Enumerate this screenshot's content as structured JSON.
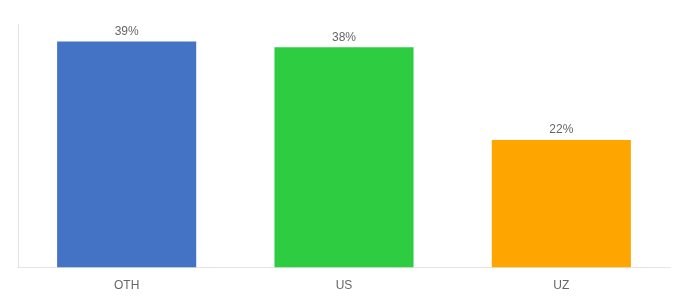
{
  "chart_data": {
    "type": "bar",
    "categories": [
      "OTH",
      "US",
      "UZ"
    ],
    "values": [
      39,
      38,
      22
    ],
    "value_labels": [
      "39%",
      "38%",
      "22%"
    ],
    "data_labels": true,
    "colors": [
      "#4472C4",
      "#2ECC40",
      "#FFA500"
    ],
    "ylim": [
      0,
      42
    ],
    "tick_labels": "x",
    "grid": false,
    "legend": false
  }
}
